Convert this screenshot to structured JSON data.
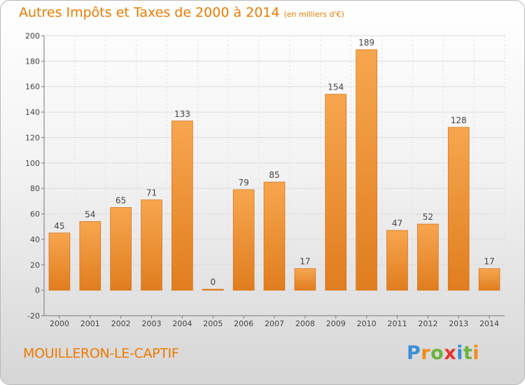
{
  "title": "Autres Impôts et Taxes de 2000 à 2014",
  "unit": "(en milliers d'€)",
  "city": "MOUILLERON-LE-CAPTIF",
  "brand": {
    "letters": [
      "P",
      "r",
      "o",
      "x",
      "i",
      "t",
      "i"
    ],
    "colors": [
      "#3a8fd6",
      "#f08c1a",
      "#6cb33e",
      "#e8312f",
      "#3a8fd6",
      "#6cb33e",
      "#f08c1a"
    ]
  },
  "colors": {
    "bar_top": "#f7a64f",
    "bar_bottom": "#e07d1f",
    "accent": "#ee7a00"
  },
  "chart_data": {
    "type": "bar",
    "title": "Autres Impôts et Taxes de 2000 à 2014",
    "unit": "(en milliers d'€)",
    "categories": [
      "2000",
      "2001",
      "2002",
      "2003",
      "2004",
      "2005",
      "2006",
      "2007",
      "2008",
      "2009",
      "2010",
      "2011",
      "2012",
      "2013",
      "2014"
    ],
    "values": [
      45,
      54,
      65,
      71,
      133,
      0,
      79,
      85,
      17,
      154,
      189,
      47,
      52,
      128,
      17
    ],
    "ylim": [
      -20,
      200
    ],
    "yticks": [
      -20,
      0,
      20,
      40,
      60,
      80,
      100,
      120,
      140,
      160,
      180,
      200
    ],
    "grid": true
  }
}
